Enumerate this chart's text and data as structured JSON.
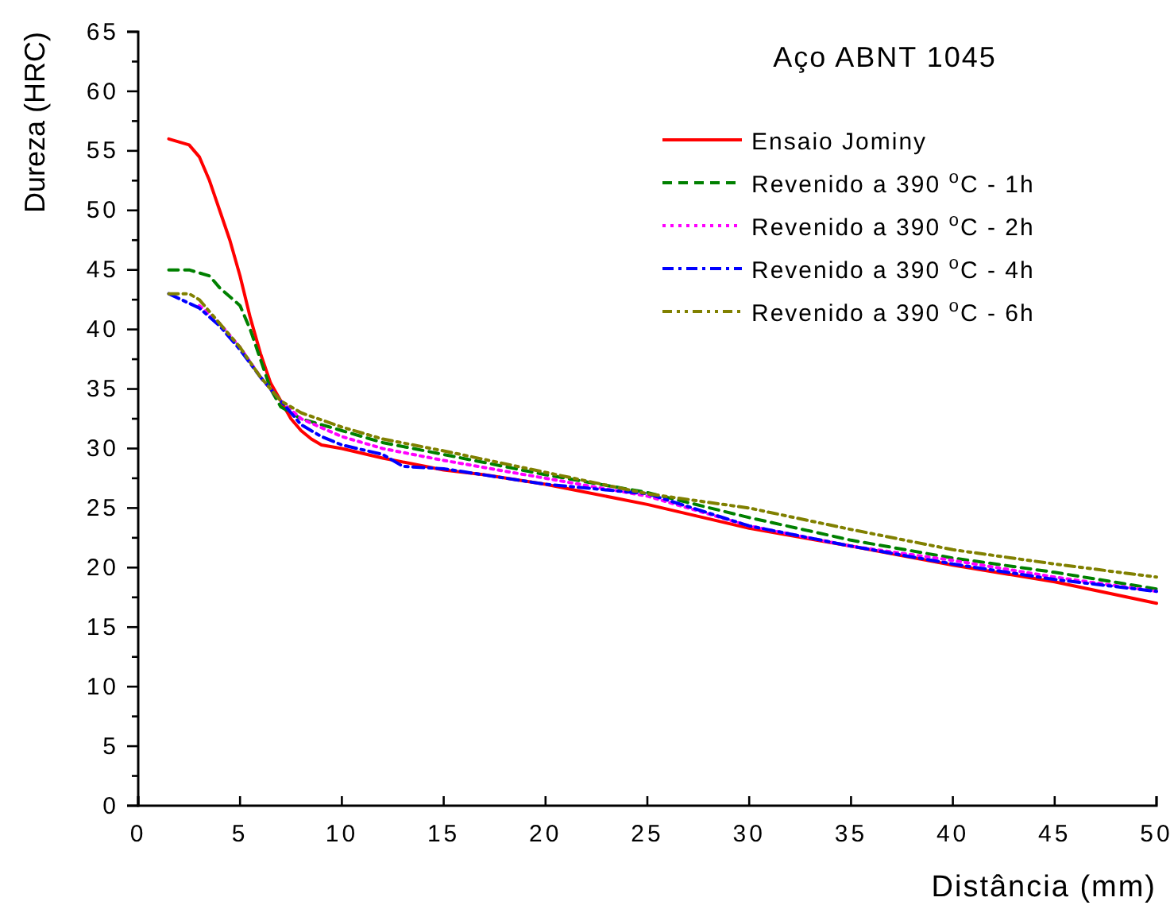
{
  "chart_data": {
    "type": "line",
    "title": "Aço ABNT 1045",
    "xlabel": "Distância (mm)",
    "ylabel": "Dureza (HRC)",
    "xlim": [
      0,
      50
    ],
    "xticks": [
      0,
      5,
      10,
      15,
      20,
      25,
      30,
      35,
      40,
      45,
      50
    ],
    "ylim": [
      0,
      65
    ],
    "yticks": [
      0,
      5,
      10,
      15,
      20,
      25,
      30,
      35,
      40,
      45,
      50,
      55,
      60,
      65
    ],
    "grid": false,
    "legend": "top right",
    "marker": "none",
    "series": [
      {
        "name": "Ensaio Jominy",
        "color": "#ff0000",
        "line_style": "solid",
        "x": [
          1.5,
          2.5,
          3,
          3.5,
          4,
          4.5,
          5,
          5.5,
          6,
          6.5,
          7,
          7.5,
          8,
          8.5,
          9,
          10,
          12,
          15,
          17,
          20,
          25,
          30,
          35,
          40,
          45,
          50
        ],
        "values": [
          56,
          55.5,
          54.5,
          52.5,
          50,
          47.5,
          44.5,
          41,
          38,
          35.5,
          34,
          32.5,
          31.5,
          30.8,
          30.3,
          30,
          29.2,
          28.2,
          27.8,
          27,
          25.3,
          23.3,
          21.8,
          20.2,
          18.8,
          17
        ]
      },
      {
        "name": "Revenido a 390 $^{o}$C - 1h",
        "color": "#008000",
        "line_style": "dashed",
        "x": [
          1.5,
          2.5,
          3.5,
          4,
          5,
          5.5,
          6,
          6.5,
          7,
          7.5,
          8,
          10,
          12,
          15,
          20,
          25,
          30,
          35,
          40,
          45,
          50
        ],
        "values": [
          45,
          45,
          44.5,
          43.5,
          42,
          40,
          37.5,
          35,
          33.5,
          33,
          32.5,
          31.5,
          30.5,
          29.5,
          27.8,
          26.3,
          24.2,
          22.3,
          20.8,
          19.6,
          18.2
        ]
      },
      {
        "name": "Revenido a 390 $^{o}$C - 2h",
        "color": "#ff00ff",
        "line_style": "dotted",
        "x": [
          3,
          4,
          5,
          6,
          7,
          8,
          10,
          12,
          15,
          20,
          25,
          30,
          35,
          40,
          45,
          50
        ],
        "values": [
          42,
          40.5,
          38.5,
          36,
          34,
          32.5,
          31,
          30,
          29,
          27.5,
          26,
          23.5,
          21.8,
          20.6,
          19.2,
          18
        ]
      },
      {
        "name": "Revenido a 390 $^{o}$C - 4h",
        "color": "#0000ff",
        "line_style": "dashdot",
        "x": [
          1.5,
          3,
          4,
          5,
          6,
          7,
          8,
          9,
          10,
          12,
          13,
          15,
          20,
          25,
          30,
          35,
          40,
          45,
          50
        ],
        "values": [
          43,
          41.8,
          40.3,
          38.3,
          36,
          34,
          32,
          31,
          30.3,
          29.5,
          28.5,
          28.3,
          27,
          26.2,
          23.5,
          21.8,
          20.3,
          19,
          18
        ]
      },
      {
        "name": "Revenido a 390 $^{o}$C - 6h",
        "color": "#808000",
        "line_style": "dashdotdot",
        "x": [
          1.5,
          2.5,
          3,
          4,
          5,
          6,
          7,
          8,
          10,
          12,
          15,
          20,
          25,
          30,
          35,
          40,
          45,
          50
        ],
        "values": [
          43,
          43,
          42.5,
          40.5,
          38.5,
          36,
          34,
          33,
          31.8,
          30.8,
          29.8,
          28,
          26.2,
          25,
          23.2,
          21.5,
          20.3,
          19.2
        ]
      }
    ]
  }
}
